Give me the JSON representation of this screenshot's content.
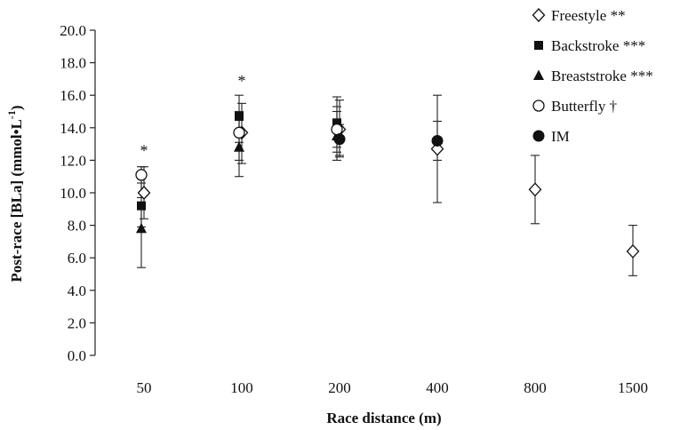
{
  "chart_data": {
    "type": "scatter",
    "xlabel": "Race distance (m)",
    "ylabel_main": "Post-race [BLa] (mmol•L",
    "ylabel_sup": "-1",
    "ylabel_end": ")",
    "categories": [
      "50",
      "100",
      "200",
      "400",
      "800",
      "1500"
    ],
    "ylim": [
      0,
      20
    ],
    "y_ticks": [
      "0.0",
      "2.0",
      "4.0",
      "6.0",
      "8.0",
      "10.0",
      "12.0",
      "14.0",
      "16.0",
      "18.0",
      "20.0"
    ],
    "grid": false,
    "legend_position": "top-right",
    "series": [
      {
        "name": "Freestyle **",
        "marker": "diamond-open",
        "points": [
          {
            "category": "50",
            "y": 10.0,
            "err_low": 8.4,
            "err_high": 11.6
          },
          {
            "category": "100",
            "y": 13.7,
            "err_low": 11.8,
            "err_high": 15.5
          },
          {
            "category": "200",
            "y": 13.9,
            "err_low": 12.2,
            "err_high": 15.7
          },
          {
            "category": "400",
            "y": 12.7,
            "err_low": 9.4,
            "err_high": 16.0
          },
          {
            "category": "800",
            "y": 10.2,
            "err_low": 8.1,
            "err_high": 12.3
          },
          {
            "category": "1500",
            "y": 6.4,
            "err_low": 4.9,
            "err_high": 8.0
          }
        ]
      },
      {
        "name": "Backstroke ***",
        "marker": "square-filled",
        "points": [
          {
            "category": "50",
            "y": 9.2,
            "err_low": 7.9,
            "err_high": 10.6
          },
          {
            "category": "100",
            "y": 14.7,
            "err_low": 13.1,
            "err_high": 16.0
          },
          {
            "category": "200",
            "y": 14.3,
            "err_low": 12.8,
            "err_high": 15.9
          }
        ]
      },
      {
        "name": "Breaststroke ***",
        "marker": "triangle-filled",
        "points": [
          {
            "category": "50",
            "y": 7.8,
            "err_low": 5.4,
            "err_high": 9.4
          },
          {
            "category": "100",
            "y": 12.8,
            "err_low": 11.0,
            "err_high": 14.5
          },
          {
            "category": "200",
            "y": 13.5,
            "err_low": 12.0,
            "err_high": 15.0
          }
        ]
      },
      {
        "name": "Butterfly †",
        "marker": "circle-open",
        "points": [
          {
            "category": "50",
            "y": 11.1,
            "err_low": 9.7,
            "err_high": 11.6
          },
          {
            "category": "100",
            "y": 13.7,
            "err_low": 12.0,
            "err_high": 15.0
          },
          {
            "category": "200",
            "y": 13.9,
            "err_low": 12.5,
            "err_high": 15.3
          }
        ]
      },
      {
        "name": "IM",
        "marker": "circle-filled",
        "points": [
          {
            "category": "200",
            "y": 13.3,
            "err_low": 12.3,
            "err_high": 14.2
          },
          {
            "category": "400",
            "y": 13.2,
            "err_low": 12.0,
            "err_high": 14.4
          }
        ]
      }
    ],
    "annotations": [
      {
        "category": "50",
        "y": 12.7,
        "text": "*"
      },
      {
        "category": "100",
        "y": 17.0,
        "text": "*"
      }
    ]
  }
}
